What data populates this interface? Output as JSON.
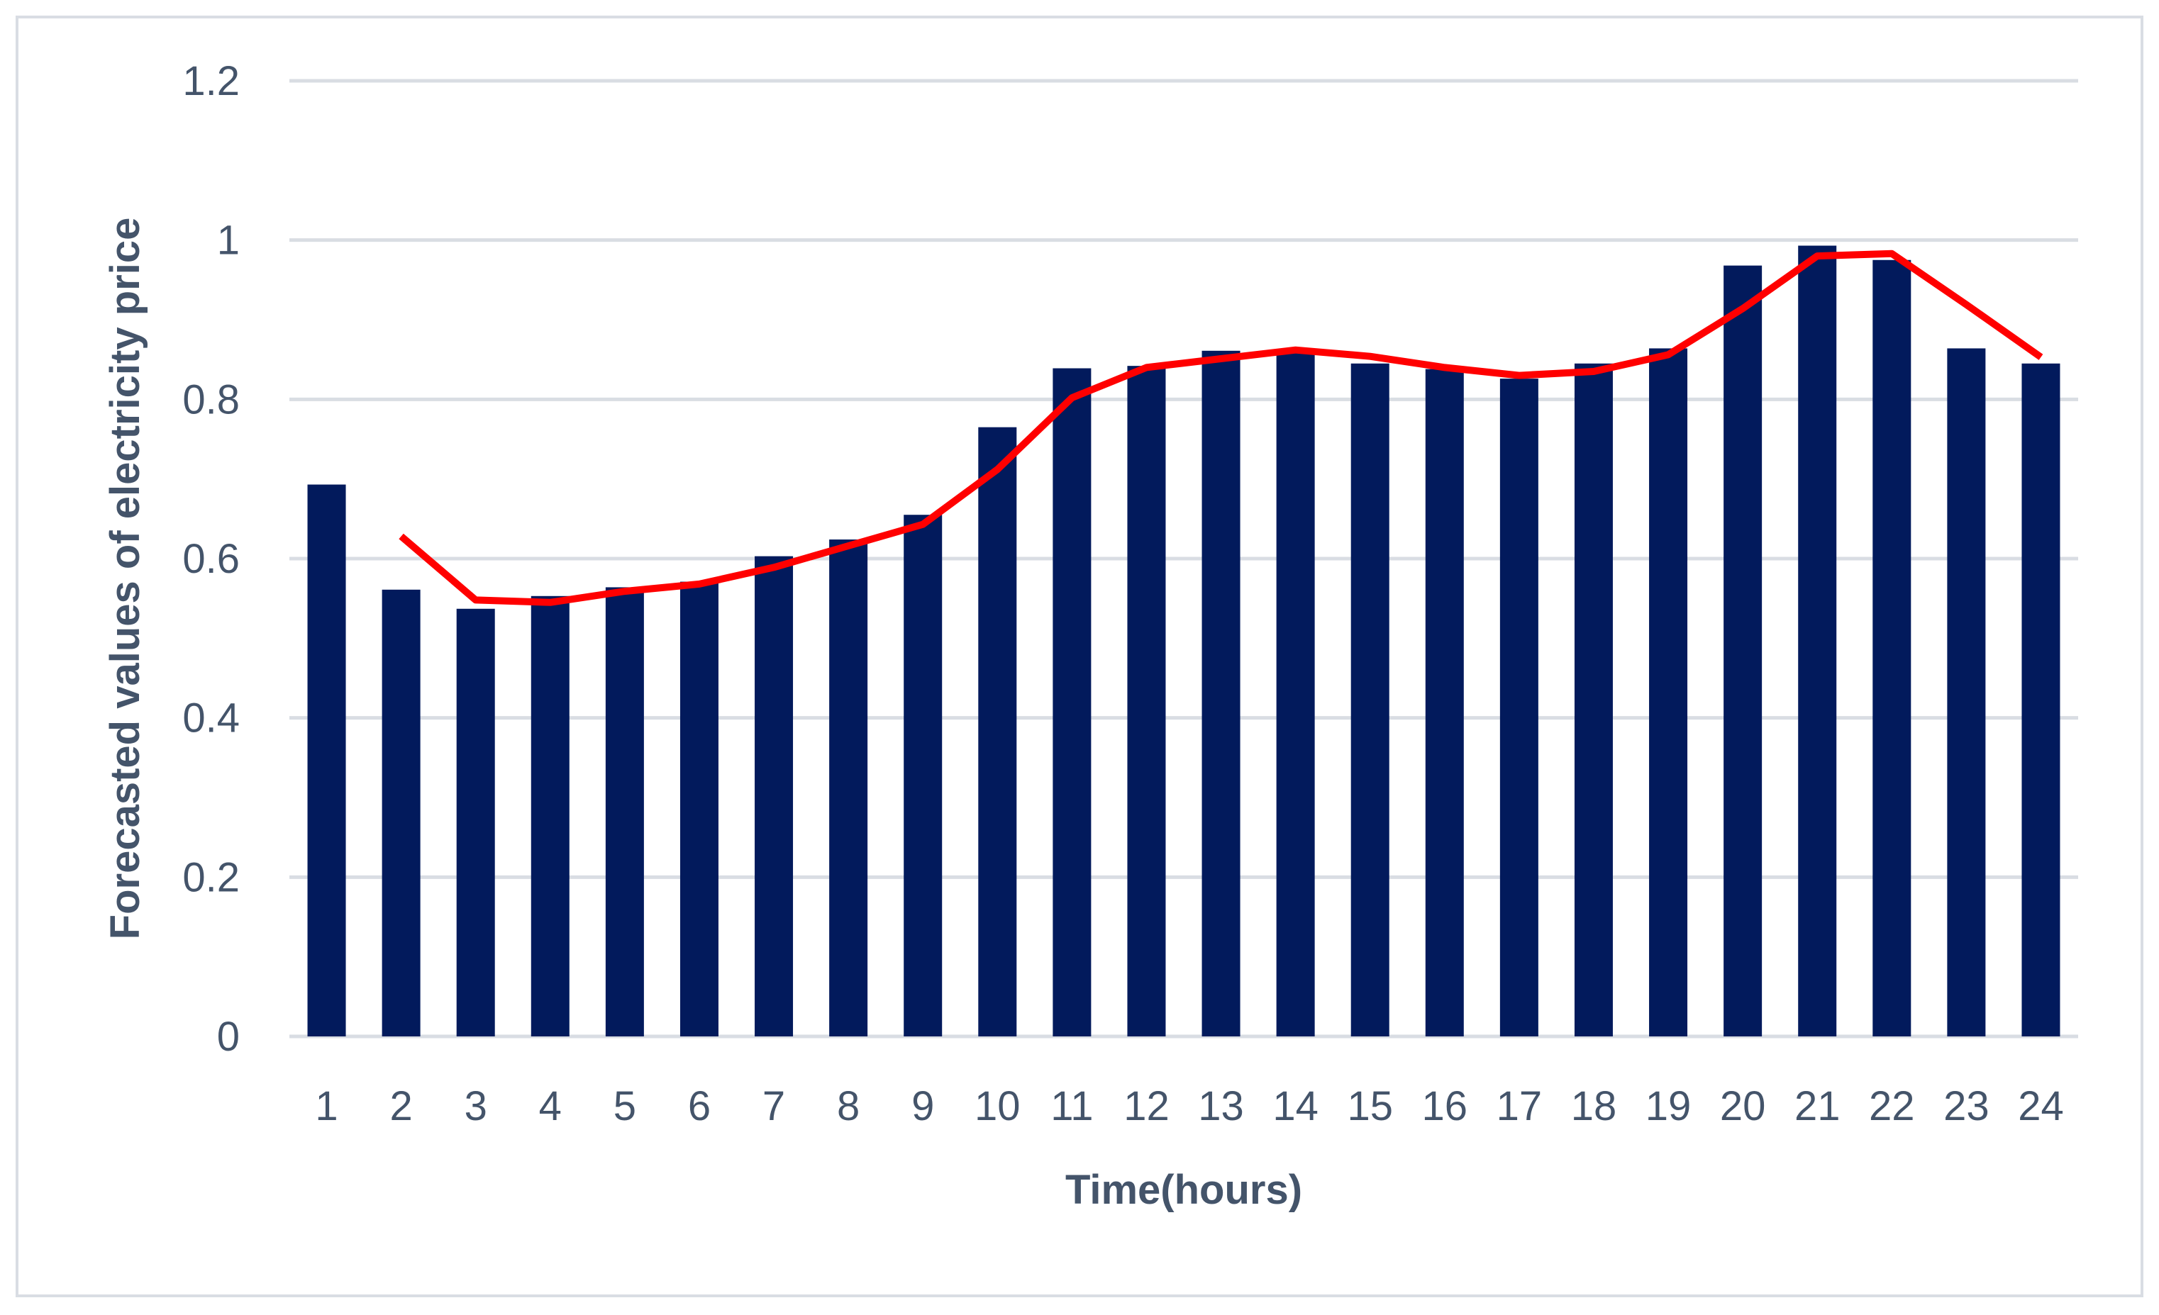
{
  "chart_data": {
    "type": "bar",
    "title": "",
    "xlabel": "Time(hours)",
    "ylabel": "Forecasted values of electricity price",
    "categories": [
      "1",
      "2",
      "3",
      "4",
      "5",
      "6",
      "7",
      "8",
      "9",
      "10",
      "11",
      "12",
      "13",
      "14",
      "15",
      "16",
      "17",
      "18",
      "19",
      "20",
      "21",
      "22",
      "23",
      "24"
    ],
    "series": [
      {
        "type": "bar",
        "color": "#021a5c",
        "values": [
          0.693,
          0.561,
          0.537,
          0.553,
          0.564,
          0.571,
          0.603,
          0.624,
          0.655,
          0.765,
          0.839,
          0.842,
          0.861,
          0.862,
          0.845,
          0.838,
          0.826,
          0.845,
          0.864,
          0.968,
          0.993,
          0.975,
          0.864,
          0.845
        ]
      },
      {
        "type": "line",
        "color": "#ff0000",
        "values": [
          null,
          0.628,
          0.548,
          0.545,
          0.559,
          0.568,
          0.589,
          0.616,
          0.643,
          0.712,
          0.802,
          0.84,
          0.851,
          0.862,
          0.854,
          0.84,
          0.83,
          0.835,
          0.856,
          0.914,
          0.98,
          0.983,
          0.919,
          0.853
        ]
      }
    ],
    "yticks": [
      "0",
      "0.2",
      "0.4",
      "0.6",
      "0.8",
      "1",
      "1.2"
    ],
    "ylim": [
      0,
      1.2
    ],
    "grid": true,
    "legend": "none"
  }
}
